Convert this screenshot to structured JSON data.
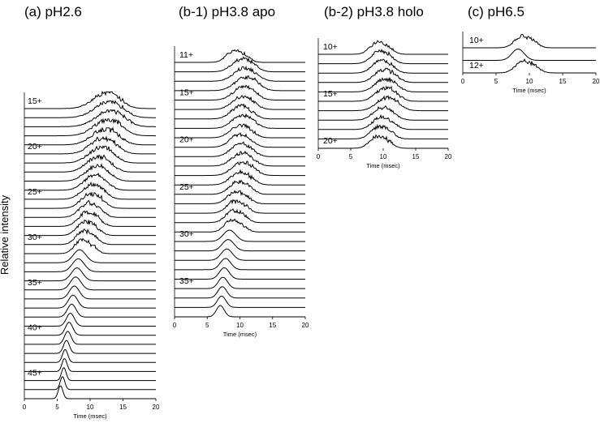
{
  "ylabel": "Relative intensity",
  "chart_data": [
    {
      "type": "line",
      "title": "(a) pH2.6",
      "xlabel": "Time (msec)",
      "xlim": [
        0,
        20
      ],
      "xticks": [
        0,
        5,
        10,
        15,
        20
      ],
      "charge_range": [
        15,
        47
      ],
      "labeled_charges": [
        "15+",
        "20+",
        "25+",
        "30+",
        "35+",
        "40+",
        "45+"
      ],
      "series_note": "arrival time distributions, one trace per charge state, stacked; peak drift time per charge",
      "peak_times": [
        12,
        12.3,
        12.5,
        12.2,
        11.8,
        11.5,
        11.2,
        10.8,
        10.6,
        10.3,
        10,
        9.8,
        9.5,
        9.3,
        9.1,
        8.9,
        8.6,
        8.4,
        8.2,
        8,
        7.8,
        7.6,
        7.4,
        7.2,
        7,
        6.8,
        6.6,
        6.4,
        6.2,
        6.1,
        6,
        5.8,
        5.5
      ]
    },
    {
      "type": "line",
      "title": "(b-1) pH3.8 apo",
      "xlabel": "Time (msec)",
      "xlim": [
        0,
        20
      ],
      "xticks": [
        0,
        5,
        10,
        15,
        20
      ],
      "charge_range": [
        11,
        38
      ],
      "labeled_charges": [
        "11+",
        "15+",
        "20+",
        "25+",
        "30+",
        "35+"
      ],
      "peak_times": [
        9,
        10,
        10.3,
        10.5,
        10.2,
        10,
        9.8,
        10,
        9.7,
        9.6,
        9.8,
        9.9,
        10,
        9.7,
        9.5,
        9.2,
        9,
        8.8,
        8.6,
        8.4,
        8.2,
        8,
        7.8,
        7.6,
        7.4,
        7.3,
        7.2,
        7
      ]
    },
    {
      "type": "line",
      "title": "(b-2) pH3.8 holo",
      "xlabel": "Time (msec)",
      "xlim": [
        0,
        20
      ],
      "xticks": [
        0,
        5,
        10,
        15,
        20
      ],
      "charge_range": [
        10,
        20
      ],
      "labeled_charges": [
        "10+",
        "15+",
        "20+"
      ],
      "peak_times": [
        9,
        9.2,
        9.4,
        9.8,
        9.9,
        10,
        10.2,
        9.6,
        9.5,
        9.2,
        9
      ]
    },
    {
      "type": "line",
      "title": "(c) pH6.5",
      "xlabel": "Time (msec)",
      "xlim": [
        0,
        20
      ],
      "xticks": [
        0,
        5,
        10,
        15,
        20
      ],
      "charge_range": [
        10,
        12
      ],
      "labeled_charges": [
        "10+",
        "12+"
      ],
      "peak_times": [
        8.8,
        8.3,
        9
      ]
    }
  ]
}
